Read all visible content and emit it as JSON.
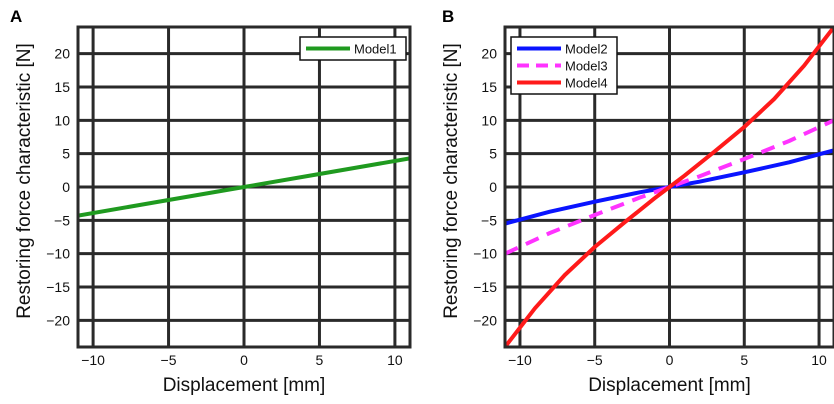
{
  "figure": {
    "panel_a_label": "A",
    "panel_b_label": "B"
  },
  "chart_data": [
    {
      "type": "line",
      "panel": "A",
      "xlabel": "Displacement [mm]",
      "ylabel": "Restoring force characteristic [N]",
      "xlim": [
        -11,
        11
      ],
      "ylim": [
        -24,
        24
      ],
      "xticks": [
        -10,
        -5,
        0,
        5,
        10
      ],
      "yticks": [
        -20,
        -15,
        -10,
        -5,
        0,
        5,
        10,
        15,
        20
      ],
      "grid": true,
      "legend_position": "top-right",
      "series": [
        {
          "name": "Model1",
          "color": "#1f9a1f",
          "dash": "solid",
          "x": [
            -11,
            -5,
            0,
            5,
            11
          ],
          "y": [
            -4.3,
            -1.95,
            0,
            1.95,
            4.3
          ]
        }
      ]
    },
    {
      "type": "line",
      "panel": "B",
      "xlabel": "Displacement [mm]",
      "ylabel": "Restoring force characteristic [N]",
      "xlim": [
        -11,
        11
      ],
      "ylim": [
        -24,
        24
      ],
      "xticks": [
        -10,
        -5,
        0,
        5,
        10
      ],
      "yticks": [
        -20,
        -15,
        -10,
        -5,
        0,
        5,
        10,
        15,
        20
      ],
      "grid": true,
      "legend_position": "top-left",
      "series": [
        {
          "name": "Model2",
          "color": "#0a14ff",
          "dash": "solid",
          "x": [
            -11,
            -8,
            -5,
            -2,
            0,
            2,
            5,
            8,
            11
          ],
          "y": [
            -5.5,
            -3.7,
            -2.2,
            -0.8,
            0,
            0.8,
            2.2,
            3.7,
            5.5
          ]
        },
        {
          "name": "Model3",
          "color": "#ff33ff",
          "dash": "dashed",
          "x": [
            -11,
            -8,
            -5,
            -2,
            0,
            2,
            5,
            8,
            11
          ],
          "y": [
            -10,
            -6.9,
            -4.2,
            -1.6,
            0,
            1.6,
            4.2,
            6.9,
            10
          ]
        },
        {
          "name": "Model4",
          "color": "#ff1a1a",
          "dash": "solid",
          "x": [
            -11,
            -9,
            -7,
            -5,
            -3,
            -1,
            0,
            1,
            3,
            5,
            7,
            9,
            11
          ],
          "y": [
            -24,
            -18.2,
            -13.2,
            -9.0,
            -5.3,
            -1.7,
            0,
            1.7,
            5.3,
            9.0,
            13.2,
            18.2,
            24
          ]
        }
      ]
    }
  ]
}
